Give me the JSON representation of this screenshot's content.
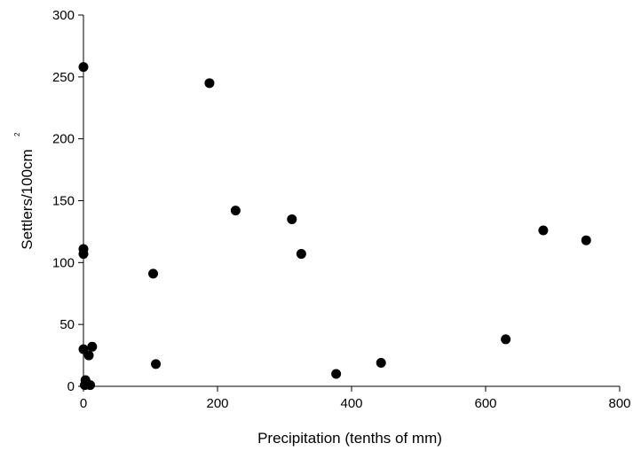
{
  "chart_data": {
    "type": "scatter",
    "title": "",
    "xlabel": "Precipitation (tenths of mm)",
    "ylabel": "Settlers/100cm",
    "ylabel_superscript": "2",
    "xlim": [
      0,
      800
    ],
    "ylim": [
      0,
      300
    ],
    "xticks": [
      0,
      200,
      400,
      600,
      800
    ],
    "yticks": [
      0,
      50,
      100,
      150,
      200,
      250,
      300
    ],
    "grid": false,
    "legend": "none",
    "marker_color": "#000000",
    "points": [
      {
        "x": 0,
        "y": 258
      },
      {
        "x": 0,
        "y": 111
      },
      {
        "x": 0,
        "y": 107
      },
      {
        "x": 0,
        "y": 30
      },
      {
        "x": 2,
        "y": 1
      },
      {
        "x": 3,
        "y": 5
      },
      {
        "x": 8,
        "y": 25
      },
      {
        "x": 10,
        "y": 1
      },
      {
        "x": 13,
        "y": 32
      },
      {
        "x": 104,
        "y": 91
      },
      {
        "x": 108,
        "y": 18
      },
      {
        "x": 188,
        "y": 245
      },
      {
        "x": 227,
        "y": 142
      },
      {
        "x": 311,
        "y": 135
      },
      {
        "x": 325,
        "y": 107
      },
      {
        "x": 377,
        "y": 10
      },
      {
        "x": 444,
        "y": 19
      },
      {
        "x": 630,
        "y": 38
      },
      {
        "x": 686,
        "y": 126
      },
      {
        "x": 750,
        "y": 118
      }
    ]
  }
}
